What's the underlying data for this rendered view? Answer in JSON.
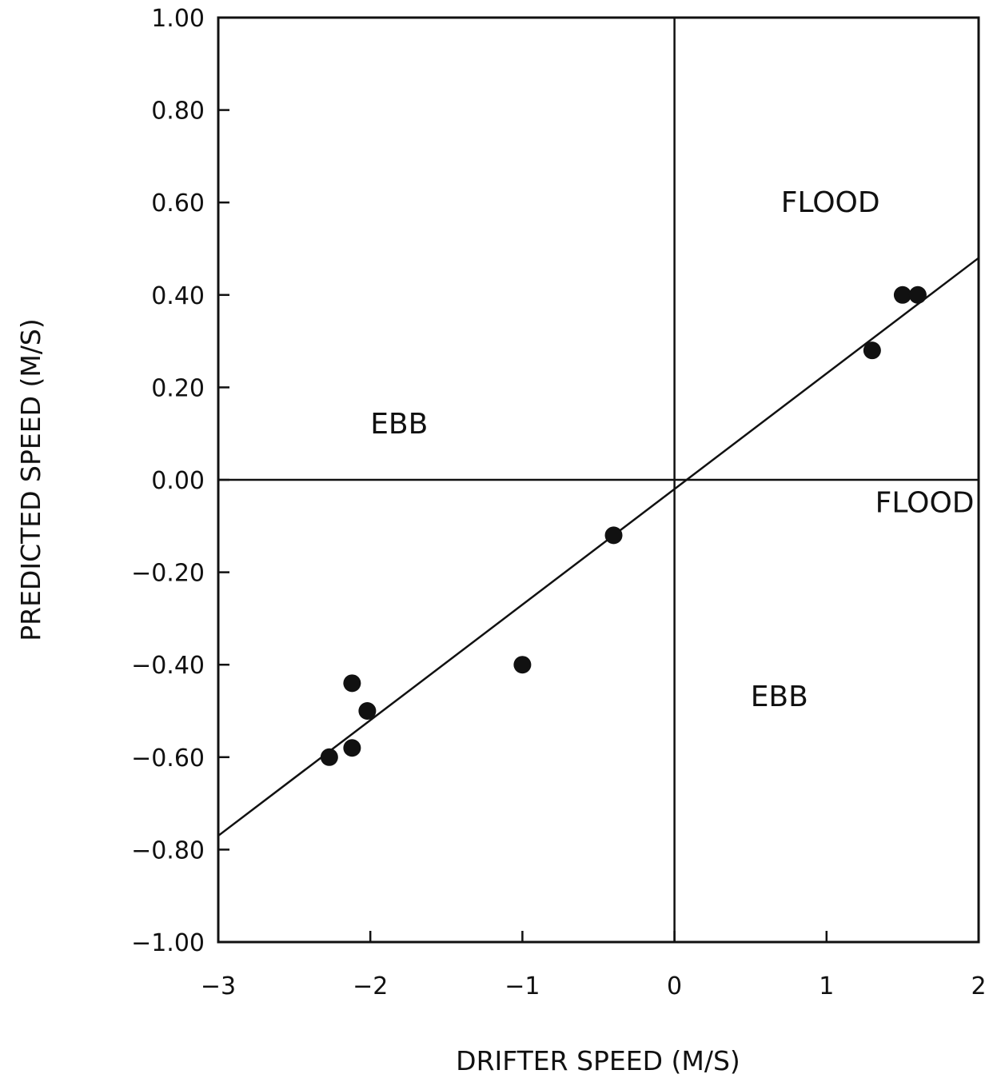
{
  "chart_data": {
    "type": "scatter",
    "title": "",
    "xlabel": "DRIFTER SPEED (M/S)",
    "ylabel": "PREDICTED SPEED (M/S)",
    "xlim": [
      -3,
      2
    ],
    "ylim": [
      -1.0,
      1.0
    ],
    "x_ticks": [
      -3,
      -2,
      -1,
      0,
      1,
      2
    ],
    "x_tick_labels": [
      "−3",
      "−2",
      "−1",
      "0",
      "1",
      "2"
    ],
    "y_ticks": [
      1.0,
      0.8,
      0.6,
      0.4,
      0.2,
      0.0,
      -0.2,
      -0.4,
      -0.6,
      -0.8,
      -1.0
    ],
    "y_tick_labels": [
      "1.00",
      "0.80",
      "0.60",
      "0.40",
      "0.20",
      "0.00",
      "−0.20",
      "−0.40",
      "−0.60",
      "−0.80",
      "−1.00"
    ],
    "grid": false,
    "reference_lines": {
      "x": 0,
      "y": 0
    },
    "series": [
      {
        "points": [
          {
            "x": -2.27,
            "y": -0.6
          },
          {
            "x": -2.12,
            "y": -0.58
          },
          {
            "x": -2.12,
            "y": -0.44
          },
          {
            "x": -2.02,
            "y": -0.5
          },
          {
            "x": -1.0,
            "y": -0.4
          },
          {
            "x": -0.4,
            "y": -0.12
          },
          {
            "x": 1.3,
            "y": 0.28
          },
          {
            "x": 1.5,
            "y": 0.4
          },
          {
            "x": 1.6,
            "y": 0.4
          }
        ]
      }
    ],
    "fit_line": {
      "x": [
        -3,
        2
      ],
      "y": [
        -0.77,
        0.48
      ]
    },
    "annotations": [
      {
        "text": "FLOOD",
        "x": 0.7,
        "y": 0.58
      },
      {
        "text": "EBB",
        "x": -2.0,
        "y": 0.1
      },
      {
        "text": "FLOOD",
        "x": 1.32,
        "y": -0.07
      },
      {
        "text": "EBB",
        "x": 0.5,
        "y": -0.49
      }
    ],
    "colors": {
      "ink": "#111111",
      "background": "#ffffff"
    }
  }
}
